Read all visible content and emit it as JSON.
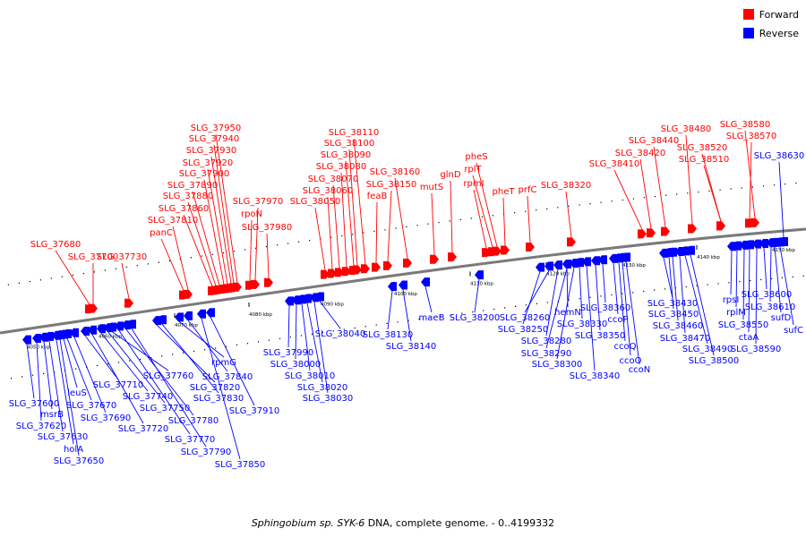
{
  "legend": {
    "items": [
      {
        "label": "Forward",
        "color": "#ff0000"
      },
      {
        "label": "Reverse",
        "color": "#0000ff"
      }
    ]
  },
  "caption": {
    "organism": "Sphingobium sp. SYK-6",
    "rest": " DNA, complete genome. - 0..4199332"
  },
  "colors": {
    "forward": "#ff0000",
    "reverse": "#0000ff",
    "axis": "#7a7a7a"
  },
  "track": {
    "ticks": [
      "4050 kbp",
      "4060 kbp",
      "4070 kbp",
      "4080 kbp",
      "4090 kbp",
      "4100 kbp",
      "4110 kbp",
      "4120 kbp",
      "4130 kbp",
      "4140 kbp",
      "4150 kbp"
    ]
  },
  "forward_genes": [
    "SLG_37680",
    "SLG_37700",
    "SLG_37730",
    "panC",
    "SLG_37810",
    "SLG_37860",
    "SLG_37880",
    "SLG_37890",
    "SLG_37900",
    "SLG_37920",
    "SLG_37930",
    "SLG_37940",
    "SLG_37950",
    "rpoN",
    "SLG_37970",
    "SLG_37980",
    "SLG_38050",
    "SLG_38060",
    "SLG_38070",
    "SLG_38080",
    "SLG_38090",
    "SLG_38100",
    "SLG_38110",
    "feaB",
    "SLG_38150",
    "SLG_38160",
    "mutS",
    "glnD",
    "rpmI",
    "rplT",
    "pheS",
    "pheT",
    "prfC",
    "SLG_38320",
    "SLG_38410",
    "SLG_38420",
    "SLG_38440",
    "SLG_38480",
    "SLG_38510",
    "SLG_38520",
    "SLG_38570",
    "SLG_38580"
  ],
  "reverse_genes": [
    "SLG_37600",
    "SLG_37620",
    "msrB",
    "SLG_37630",
    "holA",
    "SLG_37650",
    "leuS",
    "SLG_37670",
    "SLG_37690",
    "SLG_37710",
    "SLG_37720",
    "SLG_37740",
    "SLG_37750",
    "SLG_37760",
    "SLG_37770",
    "SLG_37780",
    "SLG_37790",
    "SLG_37820",
    "SLG_37830",
    "rpmG",
    "SLG_37840",
    "SLG_37850",
    "SLG_37910",
    "SLG_37990",
    "SLG_38000",
    "SLG_38010",
    "SLG_38020",
    "SLG_38030",
    "SLG_38040",
    "SLG_38130",
    "SLG_38140",
    "maeB",
    "SLG_38200",
    "SLG_38250",
    "SLG_38260",
    "SLG_38280",
    "SLG_38290",
    "SLG_38300",
    "hemN",
    "SLG_38330",
    "SLG_38340",
    "SLG_38350",
    "SLG_38360",
    "ccoP",
    "ccoQ",
    "ccoO",
    "ccoN",
    "SLG_38430",
    "SLG_38450",
    "SLG_38460",
    "SLG_38470",
    "SLG_38490",
    "SLG_38500",
    "rpsI",
    "rplM",
    "SLG_38550",
    "ctaA",
    "SLG_38590",
    "SLG_38600",
    "SLG_38610",
    "sufD",
    "sufC",
    "SLG_38630"
  ]
}
